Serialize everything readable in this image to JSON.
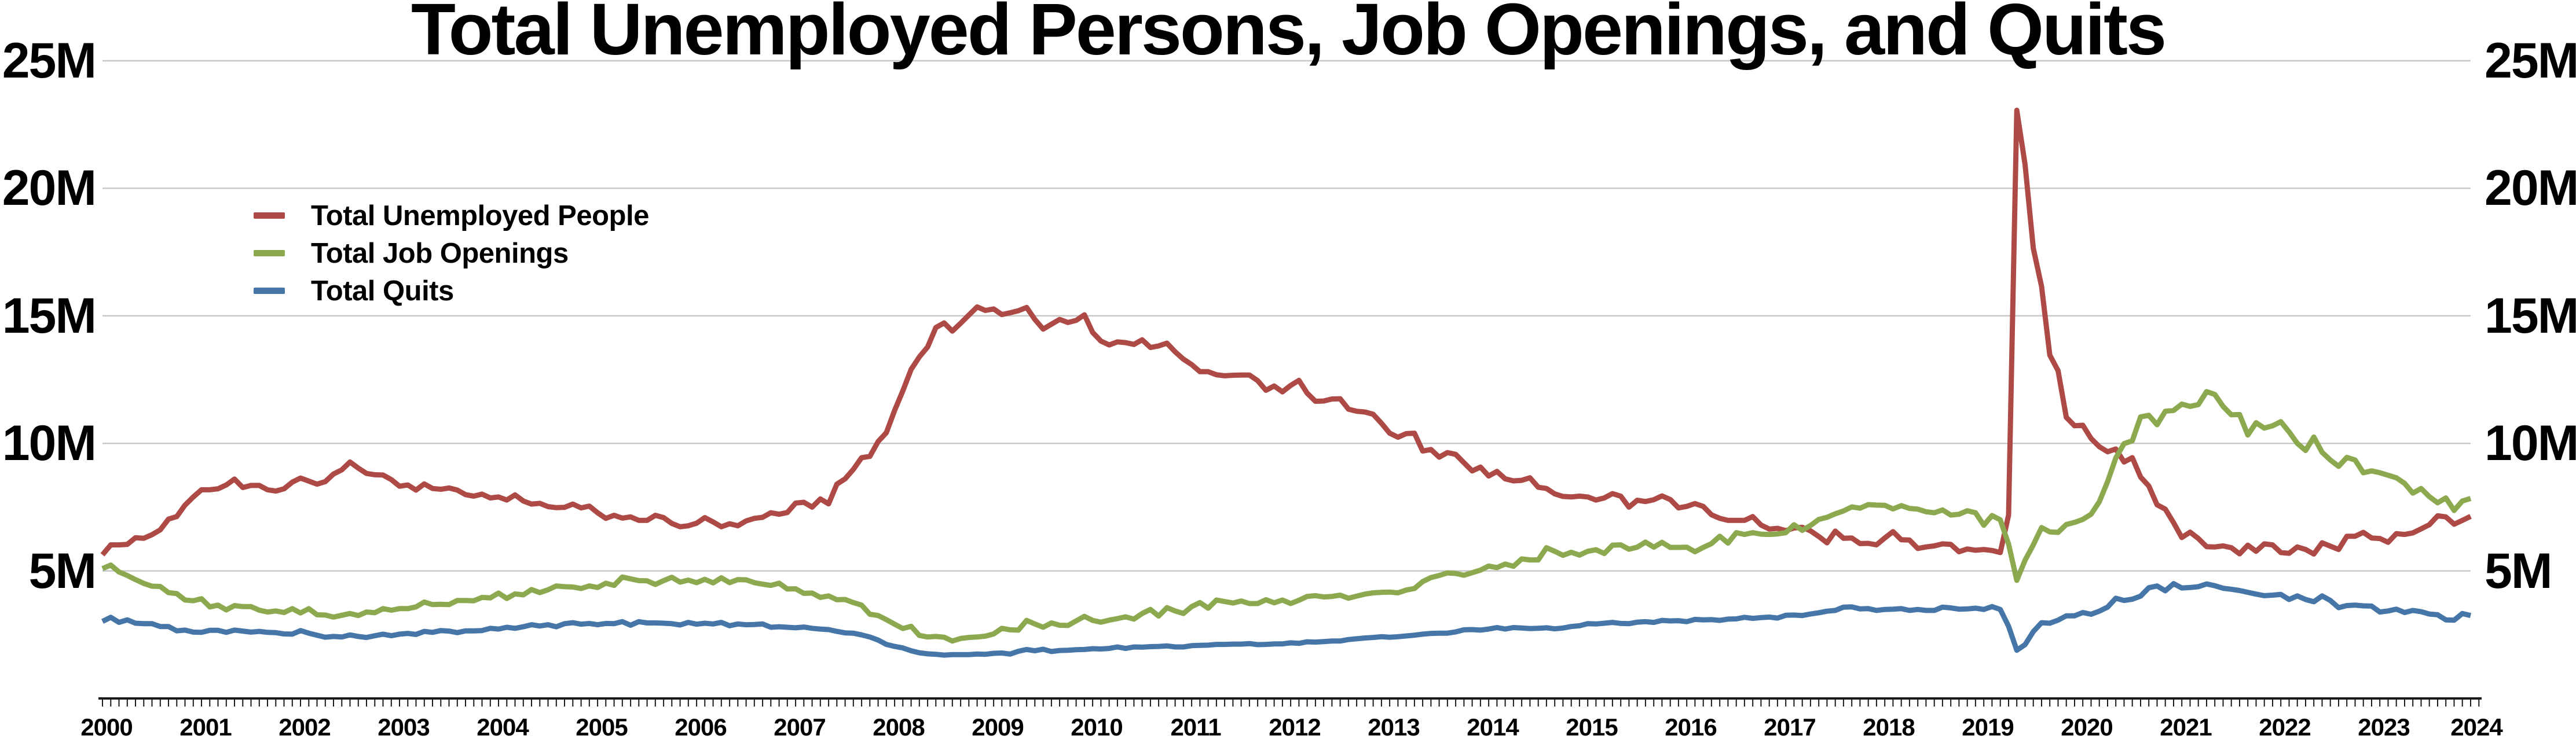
{
  "title": "Total Unemployed Persons, Job Openings, and Quits",
  "legend": {
    "items": [
      {
        "label": "Total Unemployed People",
        "series_key": "unemployed"
      },
      {
        "label": "Total Job Openings",
        "series_key": "job_openings"
      },
      {
        "label": "Total Quits",
        "series_key": "quits"
      }
    ]
  },
  "y_axis": {
    "left_labels": [
      "25M",
      "20M",
      "15M",
      "10M",
      "5M"
    ],
    "right_labels": [
      "25M",
      "20M",
      "15M",
      "10M",
      "5M"
    ],
    "values": [
      25,
      20,
      15,
      10,
      5
    ]
  },
  "x_axis": {
    "year_labels": [
      "2000",
      "2001",
      "2002",
      "2003",
      "2004",
      "2005",
      "2006",
      "2007",
      "2008",
      "2009",
      "2010",
      "2011",
      "2012",
      "2013",
      "2014",
      "2015",
      "2016",
      "2017",
      "2018",
      "2019",
      "2020",
      "2021",
      "2022",
      "2023",
      "2024"
    ]
  },
  "colors": {
    "unemployed": "#AE4A46",
    "job_openings": "#8CA94F",
    "quits": "#4676A8",
    "gridline": "#C8C8C8",
    "axis": "#1A1A1A",
    "text": "#000000",
    "background": "#FFFFFF"
  },
  "chart_data": {
    "type": "line",
    "frequency": "monthly",
    "x_start": "2000-12",
    "x_end": "2024-11",
    "unit": "millions of persons",
    "ylim": [
      0,
      25
    ],
    "gridlines_at": [
      5,
      10,
      15,
      20,
      25
    ],
    "grid": "horizontal-only",
    "legend_position": "upper-left-inside",
    "x_tick_labels": [
      "2000",
      "2001",
      "2002",
      "2003",
      "2004",
      "2005",
      "2006",
      "2007",
      "2008",
      "2009",
      "2010",
      "2011",
      "2012",
      "2013",
      "2014",
      "2015",
      "2016",
      "2017",
      "2018",
      "2019",
      "2020",
      "2021",
      "2022",
      "2023",
      "2024"
    ],
    "series": [
      {
        "name": "Total Unemployed People",
        "key": "unemployed",
        "color": "#AE4A46",
        "values": [
          5.63,
          6.02,
          6.02,
          6.04,
          6.3,
          6.28,
          6.42,
          6.61,
          7.03,
          7.13,
          7.58,
          7.9,
          8.18,
          8.18,
          8.22,
          8.37,
          8.6,
          8.27,
          8.35,
          8.35,
          8.18,
          8.13,
          8.22,
          8.48,
          8.64,
          8.52,
          8.4,
          8.5,
          8.8,
          8.96,
          9.27,
          9.03,
          8.82,
          8.77,
          8.76,
          8.58,
          8.32,
          8.37,
          8.17,
          8.41,
          8.23,
          8.2,
          8.25,
          8.17,
          7.99,
          7.93,
          8.01,
          7.86,
          7.9,
          7.78,
          7.98,
          7.74,
          7.62,
          7.65,
          7.52,
          7.48,
          7.49,
          7.62,
          7.47,
          7.54,
          7.28,
          7.06,
          7.18,
          7.07,
          7.12,
          6.98,
          6.98,
          7.18,
          7.09,
          6.86,
          6.73,
          6.77,
          6.87,
          7.09,
          6.92,
          6.73,
          6.85,
          6.77,
          6.96,
          7.06,
          7.1,
          7.28,
          7.22,
          7.29,
          7.66,
          7.69,
          7.5,
          7.82,
          7.63,
          8.4,
          8.61,
          8.98,
          9.44,
          9.49,
          10.07,
          10.42,
          11.29,
          12.06,
          12.9,
          13.39,
          13.78,
          14.54,
          14.72,
          14.4,
          14.71,
          15.03,
          15.35,
          15.21,
          15.27,
          15.05,
          15.12,
          15.2,
          15.33,
          14.86,
          14.48,
          14.67,
          14.86,
          14.74,
          14.82,
          15.04,
          14.35,
          14.01,
          13.86,
          13.98,
          13.95,
          13.88,
          14.06,
          13.76,
          13.82,
          13.93,
          13.59,
          13.3,
          13.09,
          12.81,
          12.81,
          12.69,
          12.65,
          12.67,
          12.68,
          12.68,
          12.46,
          12.08,
          12.25,
          12.02,
          12.27,
          12.47,
          11.97,
          11.65,
          11.66,
          11.74,
          11.75,
          11.34,
          11.26,
          11.23,
          11.14,
          10.79,
          10.4,
          10.24,
          10.38,
          10.4,
          9.7,
          9.76,
          9.46,
          9.64,
          9.57,
          9.24,
          8.92,
          9.07,
          8.72,
          8.9,
          8.61,
          8.53,
          8.55,
          8.65,
          8.28,
          8.23,
          8.02,
          7.92,
          7.9,
          7.93,
          7.9,
          7.78,
          7.86,
          8.03,
          7.93,
          7.5,
          7.77,
          7.72,
          7.79,
          7.94,
          7.8,
          7.47,
          7.53,
          7.64,
          7.53,
          7.2,
          7.06,
          6.98,
          6.98,
          6.98,
          7.13,
          6.8,
          6.64,
          6.67,
          6.58,
          6.68,
          6.71,
          6.57,
          6.35,
          6.1,
          6.56,
          6.28,
          6.29,
          6.07,
          6.08,
          6.02,
          6.29,
          6.54,
          6.22,
          6.21,
          5.88,
          5.94,
          5.98,
          6.06,
          6.04,
          5.75,
          5.86,
          5.81,
          5.84,
          5.8,
          5.72,
          7.19,
          23.06,
          20.93,
          17.65,
          16.15,
          13.46,
          12.85,
          11.02,
          10.69,
          10.71,
          10.19,
          9.87,
          9.67,
          9.78,
          9.27,
          9.44,
          8.68,
          8.33,
          7.59,
          7.42,
          6.89,
          6.31,
          6.52,
          6.27,
          5.95,
          5.94,
          5.98,
          5.91,
          5.67,
          6.01,
          5.77,
          6.06,
          6.02,
          5.72,
          5.69,
          5.94,
          5.84,
          5.66,
          6.1,
          5.97,
          5.84,
          6.36,
          6.36,
          6.51,
          6.29,
          6.27,
          6.12,
          6.46,
          6.43,
          6.49,
          6.65,
          6.81,
          7.16,
          7.12,
          6.83,
          6.98,
          7.14
        ]
      },
      {
        "name": "Total Job Openings",
        "key": "job_openings",
        "color": "#8CA94F",
        "values": [
          5.09,
          5.23,
          4.96,
          4.82,
          4.66,
          4.51,
          4.4,
          4.39,
          4.15,
          4.11,
          3.86,
          3.83,
          3.91,
          3.59,
          3.66,
          3.47,
          3.64,
          3.6,
          3.6,
          3.46,
          3.39,
          3.43,
          3.37,
          3.52,
          3.35,
          3.52,
          3.28,
          3.27,
          3.19,
          3.26,
          3.33,
          3.25,
          3.39,
          3.36,
          3.52,
          3.46,
          3.52,
          3.52,
          3.59,
          3.78,
          3.68,
          3.69,
          3.68,
          3.84,
          3.84,
          3.83,
          3.96,
          3.94,
          4.13,
          3.92,
          4.1,
          4.06,
          4.27,
          4.15,
          4.26,
          4.41,
          4.38,
          4.37,
          4.31,
          4.41,
          4.35,
          4.52,
          4.43,
          4.76,
          4.69,
          4.62,
          4.61,
          4.47,
          4.62,
          4.75,
          4.56,
          4.64,
          4.54,
          4.67,
          4.53,
          4.73,
          4.54,
          4.66,
          4.65,
          4.54,
          4.48,
          4.43,
          4.52,
          4.29,
          4.3,
          4.12,
          4.13,
          3.96,
          4.02,
          3.87,
          3.88,
          3.76,
          3.66,
          3.3,
          3.25,
          3.09,
          2.91,
          2.74,
          2.83,
          2.47,
          2.41,
          2.43,
          2.4,
          2.25,
          2.35,
          2.39,
          2.41,
          2.44,
          2.53,
          2.75,
          2.69,
          2.68,
          3.06,
          2.92,
          2.79,
          2.96,
          2.87,
          2.86,
          3.04,
          3.22,
          3.06,
          2.99,
          3.07,
          3.13,
          3.2,
          3.11,
          3.33,
          3.49,
          3.23,
          3.56,
          3.43,
          3.33,
          3.6,
          3.76,
          3.54,
          3.86,
          3.8,
          3.74,
          3.82,
          3.72,
          3.72,
          3.87,
          3.75,
          3.86,
          3.72,
          3.85,
          4.0,
          4.03,
          3.98,
          4.0,
          4.05,
          3.93,
          4.01,
          4.09,
          4.14,
          4.16,
          4.17,
          4.14,
          4.25,
          4.31,
          4.58,
          4.74,
          4.82,
          4.92,
          4.9,
          4.83,
          4.93,
          5.03,
          5.19,
          5.13,
          5.27,
          5.18,
          5.47,
          5.43,
          5.43,
          5.91,
          5.77,
          5.61,
          5.73,
          5.62,
          5.77,
          5.83,
          5.68,
          6.01,
          6.02,
          5.85,
          5.93,
          6.13,
          5.93,
          6.12,
          5.92,
          5.92,
          5.93,
          5.75,
          5.92,
          6.07,
          6.36,
          6.09,
          6.5,
          6.43,
          6.5,
          6.44,
          6.43,
          6.45,
          6.5,
          6.81,
          6.59,
          6.78,
          7.02,
          7.1,
          7.24,
          7.35,
          7.51,
          7.46,
          7.6,
          7.58,
          7.57,
          7.43,
          7.56,
          7.45,
          7.42,
          7.32,
          7.28,
          7.39,
          7.19,
          7.22,
          7.36,
          7.28,
          6.79,
          7.17,
          7.0,
          6.05,
          4.63,
          5.42,
          6.02,
          6.7,
          6.53,
          6.51,
          6.82,
          6.9,
          7.02,
          7.22,
          7.71,
          8.5,
          9.43,
          9.99,
          10.1,
          11.04,
          11.1,
          10.73,
          11.26,
          11.29,
          11.54,
          11.45,
          11.52,
          12.03,
          11.92,
          11.45,
          11.12,
          11.13,
          10.33,
          10.81,
          10.6,
          10.69,
          10.85,
          10.45,
          10.0,
          9.72,
          10.25,
          9.65,
          9.35,
          9.1,
          9.45,
          9.35,
          8.85,
          8.92,
          8.85,
          8.75,
          8.65,
          8.43,
          8.05,
          8.23,
          7.91,
          7.67,
          7.86,
          7.37,
          7.74,
          7.84
        ]
      },
      {
        "name": "Total Quits",
        "key": "quits",
        "color": "#4676A8",
        "values": [
          3.02,
          3.18,
          2.98,
          3.08,
          2.95,
          2.93,
          2.93,
          2.82,
          2.82,
          2.65,
          2.68,
          2.6,
          2.59,
          2.67,
          2.67,
          2.59,
          2.68,
          2.64,
          2.6,
          2.63,
          2.59,
          2.58,
          2.53,
          2.52,
          2.66,
          2.56,
          2.48,
          2.4,
          2.43,
          2.41,
          2.49,
          2.43,
          2.39,
          2.46,
          2.52,
          2.46,
          2.52,
          2.55,
          2.51,
          2.63,
          2.59,
          2.66,
          2.64,
          2.58,
          2.65,
          2.65,
          2.66,
          2.75,
          2.72,
          2.79,
          2.75,
          2.81,
          2.89,
          2.84,
          2.89,
          2.81,
          2.93,
          2.97,
          2.91,
          2.94,
          2.89,
          2.94,
          2.93,
          3.01,
          2.87,
          3.01,
          2.96,
          2.96,
          2.95,
          2.93,
          2.88,
          2.98,
          2.91,
          2.95,
          2.92,
          2.98,
          2.85,
          2.92,
          2.89,
          2.9,
          2.92,
          2.79,
          2.81,
          2.79,
          2.77,
          2.8,
          2.75,
          2.72,
          2.7,
          2.63,
          2.57,
          2.56,
          2.49,
          2.41,
          2.29,
          2.12,
          2.04,
          1.98,
          1.87,
          1.79,
          1.75,
          1.73,
          1.7,
          1.72,
          1.72,
          1.72,
          1.74,
          1.73,
          1.77,
          1.78,
          1.74,
          1.85,
          1.92,
          1.87,
          1.93,
          1.84,
          1.88,
          1.89,
          1.91,
          1.92,
          1.95,
          1.94,
          1.96,
          2.02,
          1.96,
          2.02,
          2.01,
          2.03,
          2.04,
          2.06,
          2.02,
          2.02,
          2.07,
          2.08,
          2.09,
          2.12,
          2.12,
          2.13,
          2.13,
          2.15,
          2.11,
          2.12,
          2.14,
          2.14,
          2.18,
          2.16,
          2.22,
          2.21,
          2.23,
          2.25,
          2.25,
          2.31,
          2.34,
          2.37,
          2.39,
          2.42,
          2.4,
          2.42,
          2.45,
          2.48,
          2.52,
          2.55,
          2.56,
          2.56,
          2.61,
          2.69,
          2.7,
          2.68,
          2.72,
          2.78,
          2.72,
          2.78,
          2.76,
          2.74,
          2.75,
          2.77,
          2.73,
          2.76,
          2.82,
          2.85,
          2.93,
          2.92,
          2.95,
          2.98,
          2.94,
          2.93,
          2.99,
          3.01,
          2.98,
          3.06,
          3.04,
          3.05,
          3.01,
          3.1,
          3.08,
          3.09,
          3.06,
          3.11,
          3.12,
          3.18,
          3.14,
          3.17,
          3.19,
          3.15,
          3.26,
          3.27,
          3.25,
          3.31,
          3.36,
          3.42,
          3.45,
          3.58,
          3.59,
          3.51,
          3.52,
          3.45,
          3.49,
          3.5,
          3.52,
          3.45,
          3.49,
          3.45,
          3.45,
          3.58,
          3.55,
          3.5,
          3.51,
          3.54,
          3.49,
          3.6,
          3.49,
          2.83,
          1.89,
          2.11,
          2.62,
          2.97,
          2.95,
          3.07,
          3.24,
          3.24,
          3.37,
          3.3,
          3.42,
          3.58,
          3.93,
          3.84,
          3.89,
          4.01,
          4.34,
          4.41,
          4.22,
          4.5,
          4.33,
          4.35,
          4.38,
          4.49,
          4.42,
          4.32,
          4.28,
          4.23,
          4.16,
          4.09,
          4.03,
          4.05,
          4.08,
          3.88,
          4.02,
          3.88,
          3.79,
          4.02,
          3.84,
          3.56,
          3.64,
          3.66,
          3.63,
          3.62,
          3.39,
          3.43,
          3.5,
          3.37,
          3.45,
          3.4,
          3.31,
          3.28,
          3.08,
          3.07,
          3.33,
          3.25
        ]
      }
    ]
  }
}
